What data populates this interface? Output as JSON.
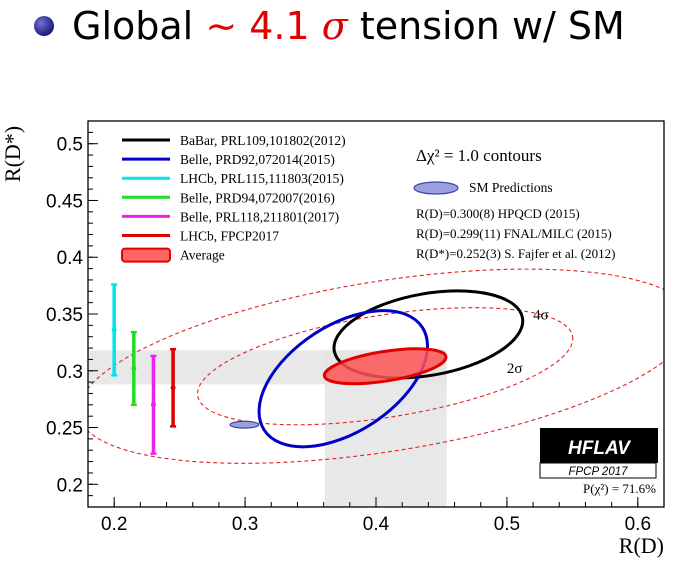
{
  "headline": {
    "prefix": "Global",
    "approx": "∼",
    "value": "4.1",
    "sigma": "σ",
    "suffix": "tension w/ SM"
  },
  "chart_data": {
    "type": "scatter",
    "xlabel": "R(D)",
    "ylabel": "R(D*)",
    "xlim": [
      0.18,
      0.62
    ],
    "ylim": [
      0.18,
      0.52
    ],
    "x_ticks": [
      0.2,
      0.3,
      0.4,
      0.5,
      0.6
    ],
    "x_tick_labels": [
      "0.2",
      "0.3",
      "0.4",
      "0.5",
      "0.6"
    ],
    "y_ticks": [
      0.2,
      0.25,
      0.3,
      0.35,
      0.4,
      0.45,
      0.5
    ],
    "y_tick_labels": [
      "0.2",
      "0.25",
      "0.3",
      "0.35",
      "0.4",
      "0.45",
      "0.5"
    ],
    "contour_note": "Δχ² = 1.0 contours",
    "colors": {
      "babar": "#000000",
      "belle_2015": "#0000c8",
      "lhcb_2015": "#00e5ee",
      "belle_2016": "#22dd22",
      "belle_2017": "#ee22ee",
      "lhcb_2017": "#e00000",
      "average_fill": "#ff5555",
      "sm_fill": "#9aa0dd",
      "sm_stroke": "#3c46a8",
      "band": "#e4e4e4"
    },
    "legend": [
      {
        "key": "babar",
        "label": "BaBar, PRL109,101802(2012)",
        "kind": "line"
      },
      {
        "key": "belle_2015",
        "label": "Belle, PRD92,072014(2015)",
        "kind": "line"
      },
      {
        "key": "lhcb_2015",
        "label": "LHCb, PRL115,111803(2015)",
        "kind": "line"
      },
      {
        "key": "belle_2016",
        "label": "Belle, PRD94,072007(2016)",
        "kind": "line"
      },
      {
        "key": "belle_2017",
        "label": "Belle, PRL118,211801(2017)",
        "kind": "line"
      },
      {
        "key": "lhcb_2017",
        "label": "LHCb, FPCP2017",
        "kind": "line"
      },
      {
        "key": "average",
        "label": "Average",
        "kind": "box"
      }
    ],
    "sm_legend": "SM Predictions",
    "sm_predictions_text": [
      "R(D)=0.300(8) HPQCD (2015)",
      "R(D)=0.299(11) FNAL/MILC (2015)",
      "R(D*)=0.252(3) S. Fajfer et al. (2012)"
    ],
    "sm_point": {
      "x": 0.2995,
      "y": 0.2525,
      "ex": 0.011,
      "ey": 0.003
    },
    "bands": {
      "rd_range": [
        0.361,
        0.454
      ],
      "rdstar_range": [
        0.288,
        0.318
      ]
    },
    "ellipses": [
      {
        "key": "babar",
        "cx": 0.44,
        "cy": 0.332,
        "rx": 0.073,
        "ry": 0.036,
        "angle_deg": -10
      },
      {
        "key": "belle_2015",
        "cx": 0.375,
        "cy": 0.293,
        "rx": 0.072,
        "ry": 0.047,
        "angle_deg": -33
      },
      {
        "key": "average",
        "cx": 0.407,
        "cy": 0.304,
        "rx": 0.047,
        "ry": 0.013,
        "angle_deg": -9
      }
    ],
    "sigma_contours": [
      {
        "label": "2σ",
        "cx": 0.407,
        "cy": 0.304,
        "rx": 0.145,
        "ry": 0.045,
        "angle_deg": -9
      },
      {
        "label": "4σ",
        "cx": 0.407,
        "cy": 0.304,
        "rx": 0.237,
        "ry": 0.075,
        "angle_deg": -9
      }
    ],
    "sigma_labels": [
      {
        "label": "4σ",
        "x": 0.52,
        "y": 0.345
      },
      {
        "label": "2σ",
        "x": 0.5,
        "y": 0.298
      }
    ],
    "rdstar_only": [
      {
        "key": "lhcb_2015",
        "x": 0.2,
        "y": 0.336,
        "lo": 0.296,
        "hi": 0.376
      },
      {
        "key": "belle_2016",
        "x": 0.215,
        "y": 0.302,
        "lo": 0.27,
        "hi": 0.334
      },
      {
        "key": "belle_2017",
        "x": 0.23,
        "y": 0.27,
        "lo": 0.227,
        "hi": 0.313
      },
      {
        "key": "lhcb_2017",
        "x": 0.245,
        "y": 0.285,
        "lo": 0.251,
        "hi": 0.319
      }
    ],
    "fit_probability": "P(χ²) = 71.6%",
    "badge": {
      "title": "HFLAV",
      "subtitle": "FPCP 2017"
    }
  }
}
